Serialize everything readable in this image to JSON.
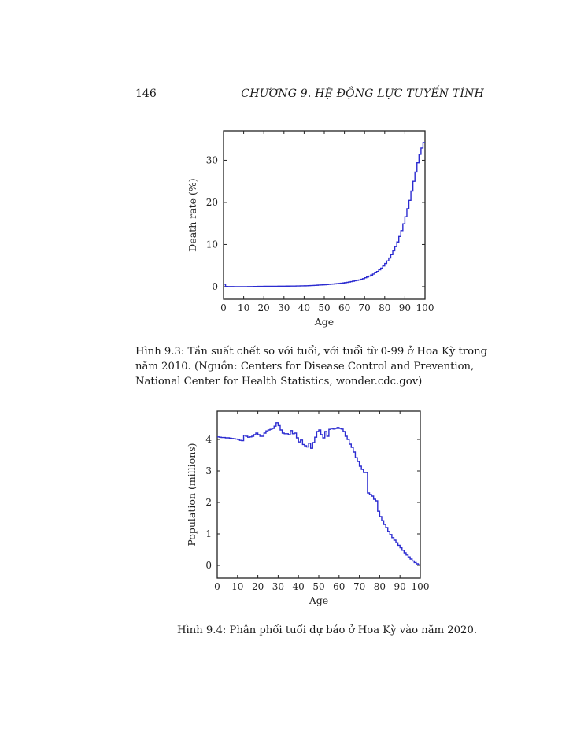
{
  "page": {
    "number": "146",
    "running_head": "CHƯƠNG 9.  HỆ ĐỘNG LỰC TUYẾN TÍNH"
  },
  "figures": [
    {
      "caption": "Hình 9.3: Tần suất chết so với tuổi, với tuổi từ 0-99 ở Hoa Kỳ trong năm 2010. (Nguồn: Centers for Disease Control and Prevention, National Center for Health Statistics, wonder.cdc.gov)"
    },
    {
      "caption": "Hình 9.4: Phân phối tuổi dự báo ở Hoa Kỳ vào năm 2020."
    }
  ],
  "colors": {
    "series": "#2b2bd0",
    "axis": "#222222"
  },
  "chart_data": [
    {
      "type": "line",
      "step": true,
      "xlabel": "Age",
      "ylabel": "Death rate (%)",
      "xlim": [
        0,
        100
      ],
      "ylim": [
        -3,
        37
      ],
      "xticks": [
        0,
        10,
        20,
        30,
        40,
        50,
        60,
        70,
        80,
        90,
        100
      ],
      "yticks": [
        0,
        10,
        20,
        30
      ],
      "series": [
        {
          "x": [
            0,
            1,
            2,
            3,
            4,
            5,
            6,
            7,
            8,
            9,
            10,
            11,
            12,
            13,
            14,
            15,
            16,
            17,
            18,
            19,
            20,
            21,
            22,
            23,
            24,
            25,
            26,
            27,
            28,
            29,
            30,
            31,
            32,
            33,
            34,
            35,
            36,
            37,
            38,
            39,
            40,
            41,
            42,
            43,
            44,
            45,
            46,
            47,
            48,
            49,
            50,
            51,
            52,
            53,
            54,
            55,
            56,
            57,
            58,
            59,
            60,
            61,
            62,
            63,
            64,
            65,
            66,
            67,
            68,
            69,
            70,
            71,
            72,
            73,
            74,
            75,
            76,
            77,
            78,
            79,
            80,
            81,
            82,
            83,
            84,
            85,
            86,
            87,
            88,
            89,
            90,
            91,
            92,
            93,
            94,
            95,
            96,
            97,
            98,
            99
          ],
          "values": [
            0.6,
            0.04,
            0.03,
            0.02,
            0.02,
            0.01,
            0.01,
            0.01,
            0.01,
            0.01,
            0.01,
            0.01,
            0.02,
            0.02,
            0.03,
            0.04,
            0.05,
            0.06,
            0.07,
            0.08,
            0.09,
            0.09,
            0.1,
            0.1,
            0.1,
            0.1,
            0.1,
            0.11,
            0.11,
            0.12,
            0.12,
            0.13,
            0.13,
            0.14,
            0.14,
            0.15,
            0.16,
            0.17,
            0.18,
            0.19,
            0.2,
            0.22,
            0.24,
            0.26,
            0.28,
            0.31,
            0.34,
            0.37,
            0.4,
            0.43,
            0.46,
            0.5,
            0.54,
            0.58,
            0.62,
            0.67,
            0.72,
            0.77,
            0.82,
            0.88,
            0.95,
            1.02,
            1.1,
            1.2,
            1.3,
            1.4,
            1.5,
            1.6,
            1.75,
            1.9,
            2.1,
            2.3,
            2.5,
            2.75,
            3.0,
            3.3,
            3.6,
            4.0,
            4.4,
            4.9,
            5.5,
            6.1,
            6.8,
            7.6,
            8.5,
            9.5,
            10.6,
            11.9,
            13.3,
            14.9,
            16.6,
            18.5,
            20.5,
            22.7,
            25.0,
            27.2,
            29.4,
            31.4,
            32.9,
            34.2
          ]
        }
      ]
    },
    {
      "type": "line",
      "step": true,
      "xlabel": "Age",
      "ylabel": "Population (millions)",
      "xlim": [
        0,
        100
      ],
      "ylim": [
        -0.4,
        4.9
      ],
      "xticks": [
        0,
        10,
        20,
        30,
        40,
        50,
        60,
        70,
        80,
        90,
        100
      ],
      "yticks": [
        0,
        1,
        2,
        3,
        4
      ],
      "series": [
        {
          "x": [
            0,
            1,
            2,
            3,
            4,
            5,
            6,
            7,
            8,
            9,
            10,
            11,
            12,
            13,
            14,
            15,
            16,
            17,
            18,
            19,
            20,
            21,
            22,
            23,
            24,
            25,
            26,
            27,
            28,
            29,
            30,
            31,
            32,
            33,
            34,
            35,
            36,
            37,
            38,
            39,
            40,
            41,
            42,
            43,
            44,
            45,
            46,
            47,
            48,
            49,
            50,
            51,
            52,
            53,
            54,
            55,
            56,
            57,
            58,
            59,
            60,
            61,
            62,
            63,
            64,
            65,
            66,
            67,
            68,
            69,
            70,
            71,
            72,
            73,
            74,
            75,
            76,
            77,
            78,
            79,
            80,
            81,
            82,
            83,
            84,
            85,
            86,
            87,
            88,
            89,
            90,
            91,
            92,
            93,
            94,
            95,
            96,
            97,
            98,
            99
          ],
          "values": [
            4.08,
            4.07,
            4.06,
            4.06,
            4.05,
            4.05,
            4.04,
            4.03,
            4.02,
            4.01,
            4.0,
            3.97,
            3.96,
            4.13,
            4.1,
            4.07,
            4.08,
            4.1,
            4.15,
            4.2,
            4.15,
            4.1,
            4.1,
            4.2,
            4.27,
            4.3,
            4.32,
            4.35,
            4.42,
            4.53,
            4.44,
            4.3,
            4.2,
            4.18,
            4.18,
            4.15,
            4.28,
            4.18,
            4.2,
            4.05,
            3.92,
            3.98,
            3.84,
            3.8,
            3.76,
            3.88,
            3.72,
            3.9,
            4.07,
            4.25,
            4.3,
            4.15,
            4.05,
            4.25,
            4.1,
            4.32,
            4.35,
            4.33,
            4.35,
            4.38,
            4.35,
            4.33,
            4.25,
            4.1,
            4.0,
            3.85,
            3.75,
            3.6,
            3.42,
            3.3,
            3.15,
            3.05,
            2.95,
            2.95,
            2.3,
            2.25,
            2.2,
            2.1,
            2.05,
            1.72,
            1.55,
            1.42,
            1.3,
            1.2,
            1.08,
            0.98,
            0.88,
            0.8,
            0.72,
            0.64,
            0.56,
            0.48,
            0.4,
            0.33,
            0.27,
            0.2,
            0.14,
            0.09,
            0.05,
            0.02
          ]
        }
      ]
    }
  ]
}
